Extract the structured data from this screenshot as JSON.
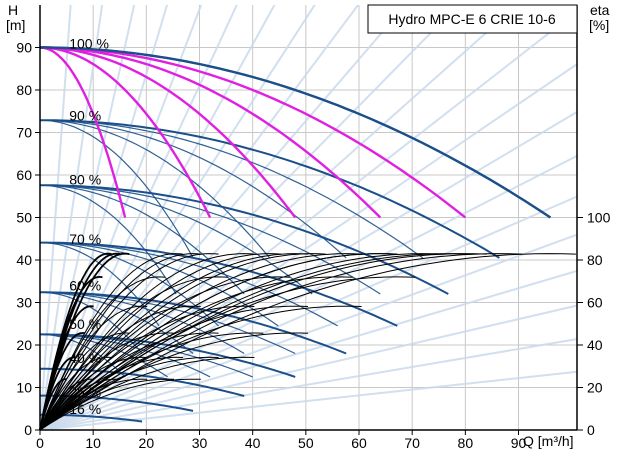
{
  "chart_data": {
    "type": "line",
    "title": "Hydro MPC-E 6 CRIE 10-6",
    "ylabel": "H",
    "yunit": "[m]",
    "ylabel_right": "eta",
    "yunit_right": "[%]",
    "xlabel": "Q [m³/h]",
    "xlim": [
      0,
      101
    ],
    "ylim": [
      0,
      100
    ],
    "x_ticks": [
      0,
      10,
      20,
      30,
      40,
      50,
      60,
      70,
      80,
      90
    ],
    "y_ticks": [
      0,
      10,
      20,
      30,
      40,
      50,
      60,
      70,
      80,
      90
    ],
    "eta_ticks": [
      0,
      20,
      40,
      60,
      80,
      100
    ],
    "speed_labels": [
      {
        "text": "100 %",
        "H": 91
      },
      {
        "text": "90 %",
        "H": 74
      },
      {
        "text": "80 %",
        "H": 59
      },
      {
        "text": "70 %",
        "H": 45
      },
      {
        "text": "60 %",
        "H": 34
      },
      {
        "text": "50 %",
        "H": 25
      },
      {
        "text": "40 %",
        "H": 17
      },
      {
        "text": "25 %",
        "H": 9
      },
      {
        "text": "16 %",
        "H": 5
      }
    ],
    "pump_counts": [
      1,
      2,
      3,
      4,
      5,
      6
    ],
    "qmax_per_pump": 16,
    "H_shutoff": 90,
    "H_end": 50,
    "speeds_pct": [
      90,
      80,
      70,
      60,
      50,
      40,
      30,
      20
    ],
    "colors": {
      "max_curve": "#e020e0",
      "speed_curve": "#1a4f8a",
      "grid": "#c8c8c8",
      "efficiency": "#000000",
      "system_lines": "#c9d9ec"
    }
  }
}
